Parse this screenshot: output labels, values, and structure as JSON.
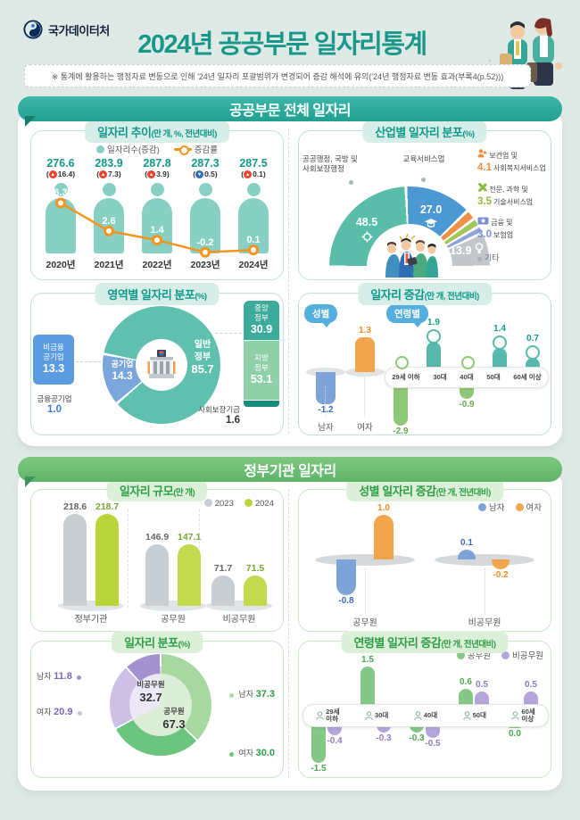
{
  "page": {
    "bg": "#dfe9e5",
    "accent_teal": "#18988a",
    "accent_green": "#6cbf6e"
  },
  "header": {
    "org": "국가데이터처",
    "title": "2024년 공공부문 일자리통계",
    "note": "※ 통계에 활용하는 행정자료 변동으로 인해 '24년 일자리 포괄범위가 변경되어 증감 해석에 유의('24년 행정자료 변동 효과(부록4(p.52)))"
  },
  "banners": [
    "공공부문 전체 일자리",
    "정부기관 일자리"
  ],
  "chart_data": [
    {
      "type": "bar+line",
      "title": "일자리 추이",
      "unit": "(만 개, %, 전년대비)",
      "legend": [
        "일자리수(증감)",
        "증감률"
      ],
      "categories": [
        "2020년",
        "2021년",
        "2022년",
        "2023년",
        "2024년"
      ],
      "jobs": [
        "276.6",
        "283.9",
        "287.8",
        "287.3",
        "287.5"
      ],
      "delta": [
        "16.4",
        "7.3",
        "3.9",
        "0.5",
        "0.1"
      ],
      "delta_dir": [
        "up",
        "up",
        "up",
        "down",
        "up"
      ],
      "rate": [
        "6.3",
        "2.6",
        "1.4",
        "-0.2",
        "0.1"
      ],
      "colors": {
        "bar": "#88d0c3",
        "line": "#f5941f",
        "up": "#e8432e",
        "down": "#2f6db7"
      }
    },
    {
      "type": "pie",
      "title": "산업별 일자리 분포",
      "unit": "(%)",
      "slices": [
        {
          "name": "공공행정, 국방 및 사회보장행정",
          "value": "48.5",
          "color": "#59bdaa"
        },
        {
          "name": "교육서비스업",
          "value": "27.0",
          "color": "#4b98d3"
        },
        {
          "name": "보건업 및 사회복지서비스업",
          "value": "4.1",
          "color": "#ef9145"
        },
        {
          "name": "전문, 과학 및 기술서비스업",
          "value": "3.5",
          "color": "#a3c859"
        },
        {
          "name": "금융 및 보험업",
          "value": "3.0",
          "color": "#93a2d8"
        },
        {
          "name": "기타",
          "value": "13.9",
          "color": "#c3c7cb"
        }
      ],
      "left_label": {
        "l1": "공공행정, 국방 및",
        "l2": "사회보장행정"
      },
      "top_label": "교육서비스업",
      "right_labels": [
        {
          "v": "4.1",
          "l1": "보건업 및",
          "l2": "사회복지서비스업",
          "color": "#ef8f3d"
        },
        {
          "v": "3.5",
          "l1": "전문, 과학 및",
          "l2": "기술서비스업",
          "color": "#8fb83e"
        },
        {
          "v": "3.0",
          "l1": "금융 및",
          "l2": "보험업",
          "color": "#7e8fd0"
        },
        {
          "v": "",
          "l1": "기타",
          "l2": "",
          "color": "#888888"
        }
      ]
    },
    {
      "type": "pie",
      "title": "영역별 일자리 분포",
      "unit": "(%)",
      "slices": [
        {
          "name": "일반정부",
          "l1": "일반",
          "l2": "정부",
          "value": "85.7",
          "color": "#5fc0b0"
        },
        {
          "name": "공기업",
          "value": "14.3",
          "color": "#7aa6dc"
        }
      ],
      "left_stack": {
        "l1": "비금융",
        "l2": "공기업",
        "value": "13.3",
        "color": "#5b9be0",
        "sub_label": "금융공기업",
        "sub_value": "1.0"
      },
      "right_stack": [
        {
          "name": "중앙정부",
          "l1": "중앙",
          "l2": "정부",
          "value": "30.9",
          "color": "#3dab9c"
        },
        {
          "name": "지방정부",
          "l1": "지방",
          "l2": "정부",
          "value": "53.1",
          "color": "#8fd0a9"
        }
      ],
      "fund_label": "사회보장기금",
      "fund_value": "1.6"
    },
    {
      "type": "bar",
      "title": "일자리 증감",
      "unit": "(만 개, 전년대비)",
      "gender": {
        "bubble": "성별",
        "labels": [
          "남자",
          "여자"
        ],
        "values": [
          "-1.2",
          "1.3"
        ]
      },
      "age": {
        "bubble": "연령별",
        "categories": [
          "29세 이하",
          "30대",
          "40대",
          "50대",
          "60세 이상"
        ],
        "values": [
          "-2.9",
          "1.9",
          "-0.9",
          "1.4",
          "0.7"
        ]
      }
    },
    {
      "type": "bar",
      "title": "일자리 규모",
      "unit": "(만 개)",
      "legend": [
        "2023",
        "2024"
      ],
      "categories": [
        "정부기관",
        "공무원",
        "비공무원"
      ],
      "series": [
        {
          "name": "2023",
          "values": [
            "218.6",
            "146.9",
            "71.7"
          ],
          "color": "#c9ced3"
        },
        {
          "name": "2024",
          "values": [
            "218.7",
            "147.1",
            "71.5"
          ],
          "color": "#b9d53a"
        }
      ]
    },
    {
      "type": "bar",
      "title": "성별 일자리 증감",
      "unit": "(만 개, 전년대비)",
      "legend": [
        "남자",
        "여자"
      ],
      "categories": [
        "공무원",
        "비공무원"
      ],
      "series": [
        {
          "name": "남자",
          "values": [
            "-0.8",
            "0.1"
          ],
          "color": "#7ea3d8"
        },
        {
          "name": "여자",
          "values": [
            "1.0",
            "-0.2"
          ],
          "color": "#f2a54d"
        }
      ]
    },
    {
      "type": "pie",
      "title": "일자리 분포",
      "unit": "(%)",
      "slices": [
        {
          "name": "공무원 남자",
          "value": "37.3",
          "color": "#a8d8a2"
        },
        {
          "name": "공무원 여자",
          "value": "30.0",
          "color": "#6cc57e"
        },
        {
          "name": "비공무원 여자",
          "value": "20.9",
          "color": "#cdc0e5"
        },
        {
          "name": "비공무원 남자",
          "value": "11.8",
          "color": "#a392cf"
        }
      ],
      "inner": [
        {
          "name": "공무원",
          "value": "67.3",
          "color": "#ddeed8"
        },
        {
          "name": "비공무원",
          "value": "32.7",
          "color": "#ece8f5"
        }
      ],
      "left": [
        {
          "cat": "남자",
          "v": "11.8"
        },
        {
          "cat": "여자",
          "v": "20.9"
        }
      ],
      "right": [
        {
          "cat": "남자",
          "v": "37.3"
        },
        {
          "cat": "여자",
          "v": "30.0"
        }
      ]
    },
    {
      "type": "bar",
      "title": "연령별 일자리 증감",
      "unit": "(만 개, 전년대비)",
      "legend": [
        "공무원",
        "비공무원"
      ],
      "categories": [
        "29세 이하",
        "30대",
        "40대",
        "50대",
        "60세 이상"
      ],
      "cat_lines": [
        {
          "l1": "29세",
          "l2": "이하"
        },
        {
          "l1": "30대",
          "l2": ""
        },
        {
          "l1": "40대",
          "l2": ""
        },
        {
          "l1": "50대",
          "l2": ""
        },
        {
          "l1": "60세",
          "l2": "이상"
        }
      ],
      "series": [
        {
          "name": "공무원",
          "values": [
            "-1.5",
            "1.5",
            "-0.3",
            "0.6",
            "0.0"
          ],
          "color": "#85c787"
        },
        {
          "name": "비공무원",
          "values": [
            "-0.4",
            "-0.3",
            "-0.5",
            "0.5",
            "0.5"
          ],
          "color": "#b4a6da"
        }
      ]
    }
  ]
}
